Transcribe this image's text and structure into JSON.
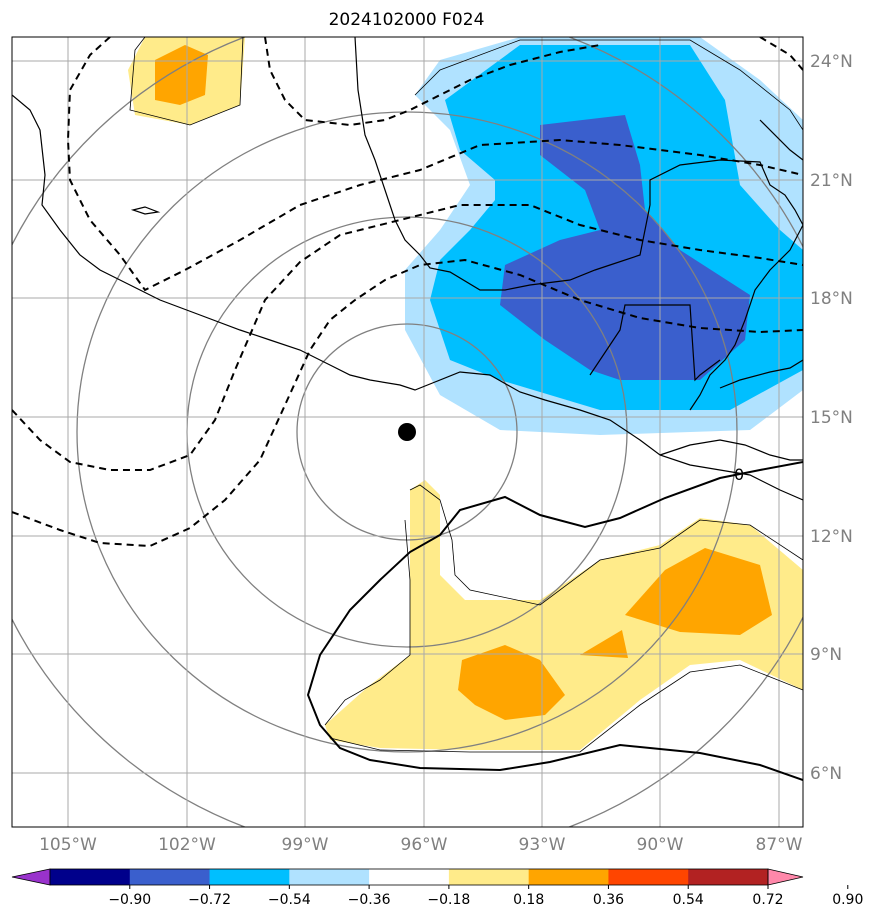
{
  "title": "2024102000 F024",
  "lat_labels": [
    "24°N",
    "21°N",
    "18°N",
    "15°N",
    "12°N",
    "9°N",
    "6°N"
  ],
  "lon_labels": [
    "105°W",
    "102°W",
    "99°W",
    "96°W",
    "93°W",
    "90°W",
    "87°W"
  ],
  "contour_label": "0",
  "colorbar": {
    "tick_labels": [
      "−0.90",
      "−0.72",
      "−0.54",
      "−0.36",
      "−0.18",
      "0.18",
      "0.36",
      "0.54",
      "0.72",
      "0.90"
    ],
    "colors": [
      "#9932cc",
      "#00008b",
      "#3a5fcd",
      "#00bfff",
      "#b0e2ff",
      "#ffffff",
      "#ffeb8a",
      "#ffa500",
      "#ff4500",
      "#b22222",
      "#ff88aa"
    ]
  },
  "storm_marker": {
    "lat": 14.6,
    "lon": -96.5
  }
}
